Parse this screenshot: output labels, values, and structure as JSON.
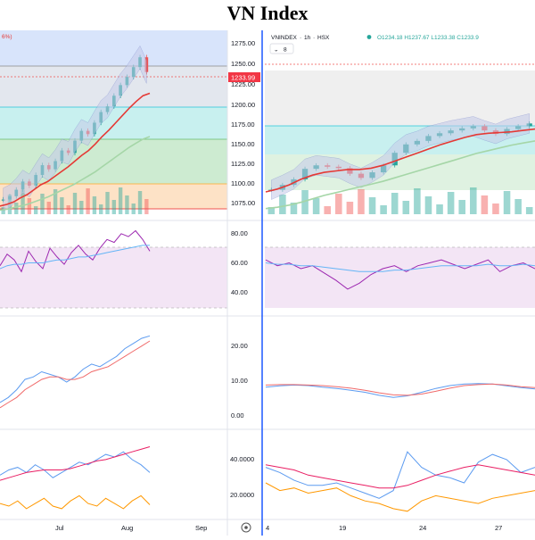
{
  "title": "VN Index",
  "colors": {
    "up": "#26a69a",
    "down": "#ef5350",
    "ma_green": "#43a047",
    "ma_red": "#e53935",
    "bollinger_fill": "#c5cae9",
    "rsi_line": "#9c27b0",
    "rsi_signal": "#64b5f6",
    "rsi_band": "#f3e5f5",
    "osc_blue": "#5c9bf0",
    "osc_red": "#f06a6a",
    "osc_pink": "#e91e63",
    "osc_orange": "#ff9800",
    "divider": "#2962ff",
    "price_tag": "#f23645"
  },
  "left_chart": {
    "header_fragment": "6%)",
    "current_price": "1233.99",
    "x_labels": [
      "Jul",
      "Aug",
      "Sep"
    ],
    "price_axis_labels": [
      "1275.00",
      "1250.00",
      "1225.00",
      "1200.00",
      "1175.00",
      "1150.00",
      "1125.00",
      "1100.00",
      "1075.00"
    ],
    "rsi_axis_labels": [
      "80.00",
      "60.00",
      "40.00"
    ],
    "osc1_axis_labels": [
      "20.00",
      "10.00",
      "0.00"
    ],
    "settings_icon": "gear-icon"
  },
  "right_chart": {
    "symbol": "VNINDEX",
    "interval": "1h",
    "exchange": "HSX",
    "ohlc": "O1234.18 H1237.67 L1233.38 C1233.9",
    "indicator_count": "8",
    "osc2_axis_labels": [
      "40.0000",
      "20.0000"
    ],
    "x_labels": [
      "4",
      "19",
      "24",
      "27"
    ]
  },
  "chart_data": [
    {
      "type": "line",
      "title": "",
      "panel": "left-price",
      "ylim": [
        1060,
        1285
      ],
      "series": [
        {
          "name": "",
          "values": [
            1078,
            1082,
            1090,
            1100,
            1095,
            1108,
            1120,
            1115,
            1125,
            1138,
            1135,
            1150,
            1162,
            1158,
            1172,
            1185,
            1192,
            1205,
            1218,
            1228,
            1240,
            1252,
            1234
          ]
        },
        {
          "name": "",
          "values": [
            1070,
            1072,
            1075,
            1080,
            1084,
            1090,
            1096,
            1100,
            1106,
            1112,
            1118,
            1125,
            1132,
            1138,
            1146,
            1155,
            1163,
            1172,
            1181,
            1190,
            1198,
            1205,
            1208
          ]
        },
        {
          "name": "",
          "values": [
            1065,
            1066,
            1068,
            1070,
            1072,
            1075,
            1078,
            1081,
            1085,
            1089,
            1093,
            1097,
            1102,
            1107,
            1112,
            1118,
            1124,
            1130,
            1136,
            1142,
            1147,
            1152,
            1155
          ]
        }
      ]
    },
    {
      "type": "line",
      "title": "",
      "panel": "right-price",
      "ylim": [
        1060,
        1285
      ],
      "series": [
        {
          "name": "",
          "values": [
            1095,
            1102,
            1110,
            1125,
            1130,
            1128,
            1126,
            1118,
            1112,
            1120,
            1130,
            1148,
            1160,
            1165,
            1172,
            1176,
            1180,
            1183,
            1186,
            1180,
            1175,
            1182,
            1186,
            1190
          ]
        },
        {
          "name": "",
          "values": [
            1092,
            1096,
            1102,
            1110,
            1116,
            1120,
            1122,
            1124,
            1124,
            1126,
            1130,
            1136,
            1142,
            1148,
            1154,
            1160,
            1165,
            1170,
            1174,
            1176,
            1177,
            1178,
            1180,
            1182
          ]
        },
        {
          "name": "",
          "values": [
            1068,
            1070,
            1073,
            1077,
            1082,
            1087,
            1091,
            1095,
            1099,
            1103,
            1107,
            1112,
            1117,
            1122,
            1127,
            1132,
            1137,
            1142,
            1147,
            1151,
            1155,
            1159,
            1162,
            1165
          ]
        }
      ]
    },
    {
      "type": "line",
      "title": "",
      "panel": "left-rsi",
      "ylim": [
        30,
        90
      ],
      "series": [
        {
          "name": "",
          "values": [
            62,
            70,
            66,
            58,
            72,
            65,
            60,
            74,
            68,
            63,
            71,
            76,
            70,
            66,
            74,
            80,
            78,
            84,
            82,
            86,
            80,
            72
          ]
        },
        {
          "name": "",
          "values": [
            60,
            62,
            63,
            63,
            64,
            64,
            64,
            65,
            66,
            66,
            67,
            68,
            68,
            69,
            70,
            71,
            72,
            73,
            74,
            75,
            76,
            76
          ]
        }
      ]
    },
    {
      "type": "line",
      "title": "",
      "panel": "right-rsi",
      "ylim": [
        30,
        90
      ],
      "series": [
        {
          "name": "",
          "values": [
            66,
            62,
            64,
            60,
            62,
            57,
            52,
            46,
            50,
            56,
            60,
            62,
            58,
            62,
            64,
            66,
            63,
            60,
            63,
            66,
            58,
            62,
            64,
            60
          ]
        },
        {
          "name": "",
          "values": [
            64,
            63,
            63,
            62,
            62,
            61,
            60,
            59,
            58,
            58,
            58,
            59,
            59,
            60,
            61,
            62,
            62,
            62,
            62,
            63,
            62,
            62,
            63,
            62
          ]
        }
      ]
    },
    {
      "type": "line",
      "title": "",
      "panel": "left-oscillator",
      "ylim": [
        -4,
        36
      ],
      "series": [
        {
          "name": "",
          "values": [
            4,
            6,
            9,
            13,
            14,
            16,
            15,
            14,
            12,
            14,
            17,
            19,
            18,
            20,
            22,
            25,
            27,
            29,
            30
          ]
        },
        {
          "name": "",
          "values": [
            2,
            4,
            6,
            9,
            11,
            13,
            14,
            14,
            13,
            13,
            14,
            16,
            17,
            18,
            20,
            22,
            24,
            26,
            28
          ]
        }
      ]
    },
    {
      "type": "line",
      "title": "",
      "panel": "right-oscillator",
      "ylim": [
        -4,
        36
      ],
      "series": [
        {
          "name": "",
          "values": [
            10,
            10.5,
            10.8,
            10.6,
            10,
            9.5,
            8.8,
            8,
            6.8,
            6,
            6.6,
            8,
            9.5,
            10.6,
            11.2,
            11.4,
            11.2,
            10.5,
            9.8,
            9.3
          ]
        },
        {
          "name": "",
          "values": [
            10.8,
            11,
            11,
            10.8,
            10.6,
            10.2,
            9.6,
            8.8,
            7.8,
            7,
            6.8,
            7.3,
            8.4,
            9.6,
            10.6,
            11,
            11.2,
            10.8,
            10.2,
            9.8
          ]
        }
      ]
    },
    {
      "type": "line",
      "title": "",
      "panel": "left-directional",
      "ylim": [
        5,
        70
      ],
      "series": [
        {
          "name": "",
          "values": [
            38,
            42,
            44,
            40,
            46,
            42,
            36,
            40,
            44,
            48,
            46,
            50,
            54,
            52,
            56,
            50,
            46,
            40
          ]
        },
        {
          "name": "",
          "values": [
            34,
            36,
            38,
            40,
            41,
            42,
            42,
            42,
            43,
            45,
            47,
            49,
            50,
            52,
            54,
            56,
            58,
            60
          ]
        },
        {
          "name": "",
          "values": [
            16,
            14,
            18,
            12,
            16,
            20,
            14,
            12,
            18,
            22,
            16,
            14,
            20,
            16,
            12,
            18,
            22,
            15
          ]
        }
      ]
    },
    {
      "type": "line",
      "title": "",
      "panel": "right-directional",
      "ylim": [
        5,
        70
      ],
      "series": [
        {
          "name": "",
          "values": [
            44,
            40,
            34,
            30,
            30,
            32,
            28,
            24,
            20,
            26,
            56,
            44,
            38,
            36,
            32,
            48,
            54,
            50,
            40,
            44
          ]
        },
        {
          "name": "",
          "values": [
            46,
            44,
            42,
            38,
            36,
            34,
            32,
            30,
            28,
            28,
            30,
            34,
            38,
            41,
            44,
            46,
            44,
            42,
            40,
            38
          ]
        },
        {
          "name": "",
          "values": [
            32,
            26,
            28,
            24,
            26,
            28,
            22,
            18,
            16,
            12,
            10,
            18,
            22,
            20,
            18,
            16,
            20,
            22,
            24,
            26
          ]
        }
      ]
    }
  ]
}
